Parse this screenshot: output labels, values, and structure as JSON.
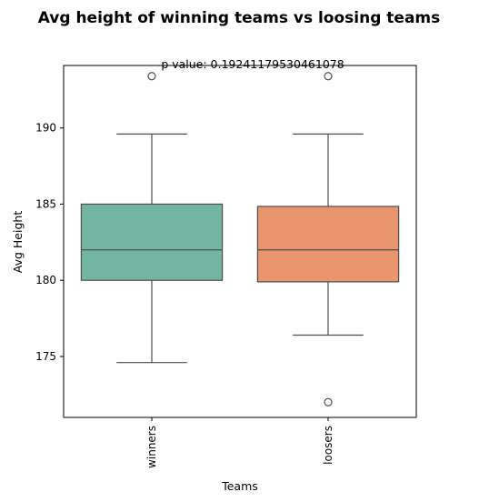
{
  "chart_data": {
    "type": "box",
    "title": "Avg height of winning teams vs loosing teams",
    "annotation": "p value: 0.19241179530461078",
    "xlabel": "Teams",
    "ylabel": "Avg Height",
    "ylim": [
      171,
      194.1
    ],
    "yticks": [
      175,
      180,
      185,
      190
    ],
    "grid": false,
    "categories": [
      "winners",
      "loosers"
    ],
    "boxes": [
      {
        "category": "winners",
        "color": "#72b6a1",
        "whisker_low": 174.6,
        "q1": 180.0,
        "median": 182.0,
        "q3": 185.0,
        "whisker_high": 189.6,
        "outliers": [
          193.4
        ]
      },
      {
        "category": "loosers",
        "color": "#e9956e",
        "whisker_low": 176.4,
        "q1": 179.9,
        "median": 182.0,
        "q3": 184.85,
        "whisker_high": 189.6,
        "outliers": [
          193.4,
          172.0
        ]
      }
    ]
  }
}
